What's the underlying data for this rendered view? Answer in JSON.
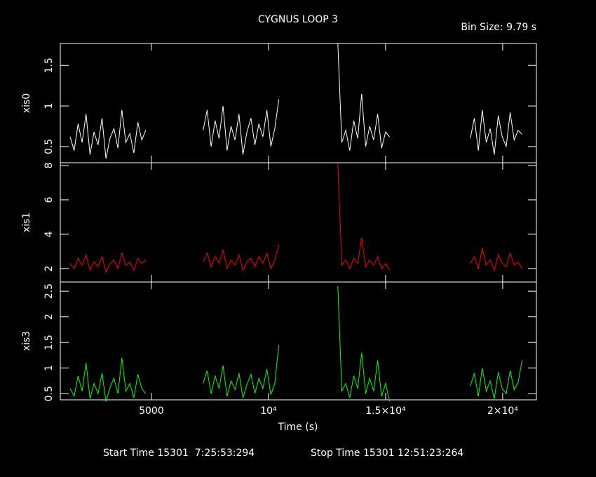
{
  "chart_data": [
    {
      "type": "line",
      "title": "CYGNUS LOOP 3",
      "subtitle": "Bin Size: 9.79 s",
      "ylabel": "xis0",
      "color": "#ffffff",
      "x": [
        1530,
        1700,
        1870,
        2040,
        2210,
        2380,
        2550,
        2720,
        2890,
        3060,
        3230,
        3400,
        3570,
        3740,
        3910,
        4080,
        4250,
        4420,
        4590,
        4760,
        null,
        7210,
        7380,
        7550,
        7720,
        7890,
        8060,
        8230,
        8400,
        8570,
        8740,
        8910,
        9080,
        9250,
        9420,
        9590,
        9760,
        9930,
        10100,
        10270,
        10440,
        null,
        12960,
        13130,
        13300,
        13470,
        13640,
        13810,
        13980,
        14150,
        14320,
        14490,
        14660,
        14830,
        15000,
        15170,
        null,
        18620,
        18790,
        18960,
        19130,
        19300,
        19470,
        19640,
        19810,
        19980,
        20150,
        20320,
        20490,
        20660,
        20830
      ],
      "values": [
        0.62,
        0.45,
        0.78,
        0.55,
        0.9,
        0.4,
        0.68,
        0.52,
        0.85,
        0.35,
        0.6,
        0.72,
        0.48,
        0.95,
        0.55,
        0.66,
        0.42,
        0.8,
        0.58,
        0.7,
        null,
        0.7,
        0.95,
        0.5,
        0.82,
        0.6,
        1.0,
        0.45,
        0.75,
        0.58,
        0.9,
        0.4,
        0.68,
        0.85,
        0.52,
        0.78,
        0.62,
        0.95,
        0.5,
        0.72,
        1.08,
        null,
        1.77,
        0.55,
        0.7,
        0.45,
        0.82,
        0.6,
        1.15,
        0.5,
        0.75,
        0.58,
        0.9,
        0.48,
        0.68,
        0.62,
        null,
        0.6,
        0.85,
        0.45,
        0.95,
        0.55,
        0.72,
        0.4,
        0.88,
        0.62,
        0.5,
        0.92,
        0.58,
        0.7,
        0.65
      ],
      "xlim": [
        1110,
        21440
      ],
      "ylim": [
        0.3,
        1.77
      ],
      "yticks": [
        0.5,
        1,
        1.5
      ]
    },
    {
      "type": "line",
      "ylabel": "xis1",
      "color": "#ff0000",
      "x": [
        1530,
        1700,
        1870,
        2040,
        2210,
        2380,
        2550,
        2720,
        2890,
        3060,
        3230,
        3400,
        3570,
        3740,
        3910,
        4080,
        4250,
        4420,
        4590,
        4760,
        null,
        7210,
        7380,
        7550,
        7720,
        7890,
        8060,
        8230,
        8400,
        8570,
        8740,
        8910,
        9080,
        9250,
        9420,
        9590,
        9760,
        9930,
        10100,
        10270,
        10440,
        null,
        12960,
        13130,
        13300,
        13470,
        13640,
        13810,
        13980,
        14150,
        14320,
        14490,
        14660,
        14830,
        15000,
        15170,
        null,
        18620,
        18790,
        18960,
        19130,
        19300,
        19470,
        19640,
        19810,
        19980,
        20150,
        20320,
        20490,
        20660,
        20830
      ],
      "values": [
        2.3,
        2.0,
        2.6,
        2.2,
        2.8,
        1.9,
        2.4,
        2.1,
        2.7,
        1.8,
        2.3,
        2.5,
        2.0,
        2.9,
        2.2,
        2.4,
        1.9,
        2.6,
        2.3,
        2.5,
        null,
        2.4,
        2.9,
        2.1,
        2.7,
        2.3,
        3.1,
        2.0,
        2.5,
        2.2,
        2.8,
        1.9,
        2.4,
        2.6,
        2.1,
        2.7,
        2.3,
        2.9,
        2.0,
        2.5,
        3.4,
        null,
        8.1,
        2.2,
        2.5,
        2.0,
        2.6,
        2.3,
        3.8,
        2.1,
        2.5,
        2.2,
        2.7,
        2.0,
        2.3,
        1.9,
        null,
        2.3,
        2.7,
        2.0,
        3.2,
        2.2,
        2.5,
        1.9,
        2.8,
        2.3,
        2.1,
        2.9,
        2.2,
        2.4,
        2.0
      ],
      "xlim": [
        1110,
        21440
      ],
      "ylim": [
        1.22,
        8.16
      ],
      "yticks": [
        2,
        4,
        6,
        8
      ]
    },
    {
      "type": "line",
      "ylabel": "xis3",
      "xlabel": "Time (s)",
      "color": "#00ff00",
      "x": [
        1530,
        1700,
        1870,
        2040,
        2210,
        2380,
        2550,
        2720,
        2890,
        3060,
        3230,
        3400,
        3570,
        3740,
        3910,
        4080,
        4250,
        4420,
        4590,
        4760,
        null,
        7210,
        7380,
        7550,
        7720,
        7890,
        8060,
        8230,
        8400,
        8570,
        8740,
        8910,
        9080,
        9250,
        9420,
        9590,
        9760,
        9930,
        10100,
        10270,
        10440,
        null,
        12960,
        13130,
        13300,
        13470,
        13640,
        13810,
        13980,
        14150,
        14320,
        14490,
        14660,
        14830,
        15000,
        15170,
        null,
        18620,
        18790,
        18960,
        19130,
        19300,
        19470,
        19640,
        19810,
        19980,
        20150,
        20320,
        20490,
        20660,
        20830
      ],
      "values": [
        0.6,
        0.45,
        0.85,
        0.55,
        1.1,
        0.4,
        0.7,
        0.5,
        0.9,
        0.35,
        0.62,
        0.8,
        0.5,
        1.2,
        0.55,
        0.7,
        0.42,
        0.88,
        0.6,
        0.5,
        null,
        0.7,
        0.95,
        0.5,
        0.85,
        0.6,
        1.05,
        0.45,
        0.75,
        0.58,
        0.9,
        0.42,
        0.68,
        0.88,
        0.5,
        0.8,
        0.6,
        0.98,
        0.48,
        0.7,
        1.45,
        null,
        2.6,
        0.55,
        0.7,
        0.42,
        0.85,
        0.6,
        1.3,
        0.5,
        0.8,
        0.55,
        1.15,
        0.45,
        0.7,
        0.35,
        null,
        0.65,
        0.9,
        0.45,
        1.0,
        0.55,
        0.75,
        0.4,
        0.92,
        0.6,
        0.5,
        0.95,
        0.58,
        0.72,
        1.15
      ],
      "xlim": [
        1110,
        21440
      ],
      "ylim": [
        0.38,
        2.68
      ],
      "yticks": [
        0.5,
        1,
        1.5,
        2,
        2.5
      ],
      "xticks": [
        5000,
        {
          "value": 10000,
          "label": "10⁴"
        },
        {
          "value": 15000,
          "label": "1.5×10⁴"
        },
        {
          "value": 20000,
          "label": "2×10⁴"
        }
      ]
    }
  ],
  "footer": {
    "start": "Start Time 15301  7:25:53:294",
    "stop": "Stop Time 15301 12:51:23:264"
  }
}
